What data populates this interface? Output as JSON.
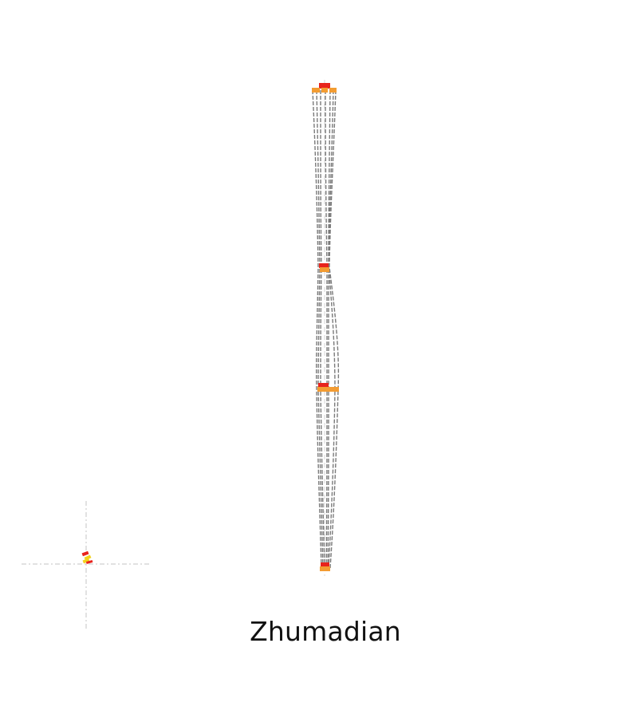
{
  "diagram": {
    "title": "Zhumadian",
    "colors": {
      "background": "#ffffff",
      "band_stroke": "#7a7a7a",
      "axis_dash": "#cfcfcf",
      "node_red": "#e8231c",
      "node_orange": "#f39c32",
      "node_yellow": "#f3d21c"
    }
  }
}
